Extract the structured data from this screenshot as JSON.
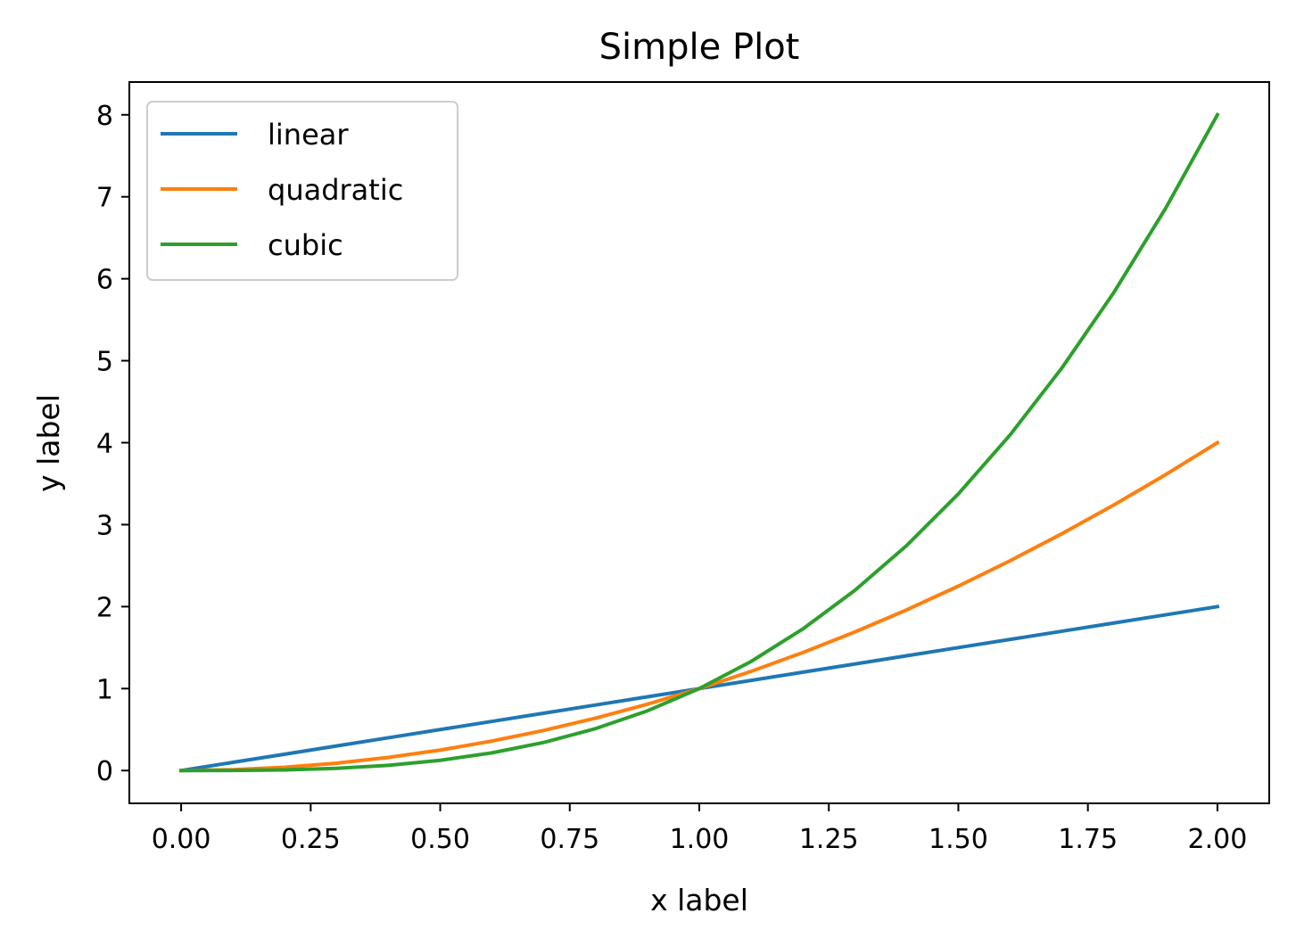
{
  "chart_data": {
    "type": "line",
    "title": "Simple Plot",
    "xlabel": "x label",
    "ylabel": "y label",
    "xlim": [
      -0.1,
      2.1
    ],
    "ylim": [
      -0.4,
      8.4
    ],
    "x_ticks": [
      "0.00",
      "0.25",
      "0.50",
      "0.75",
      "1.00",
      "1.25",
      "1.50",
      "1.75",
      "2.00"
    ],
    "y_ticks": [
      "0",
      "1",
      "2",
      "3",
      "4",
      "5",
      "6",
      "7",
      "8"
    ],
    "grid": false,
    "legend_position": "upper-left",
    "x": [
      0.0,
      0.1,
      0.2,
      0.3,
      0.4,
      0.5,
      0.6,
      0.7,
      0.8,
      0.9,
      1.0,
      1.1,
      1.2,
      1.3,
      1.4,
      1.5,
      1.6,
      1.7,
      1.8,
      1.9,
      2.0
    ],
    "series": [
      {
        "name": "linear",
        "color": "#1f77b4",
        "values": [
          0.0,
          0.1,
          0.2,
          0.3,
          0.4,
          0.5,
          0.6,
          0.7,
          0.8,
          0.9,
          1.0,
          1.1,
          1.2,
          1.3,
          1.4,
          1.5,
          1.6,
          1.7,
          1.8,
          1.9,
          2.0
        ]
      },
      {
        "name": "quadratic",
        "color": "#ff7f0e",
        "values": [
          0.0,
          0.01,
          0.04,
          0.09,
          0.16,
          0.25,
          0.36,
          0.49,
          0.64,
          0.81,
          1.0,
          1.21,
          1.44,
          1.69,
          1.96,
          2.25,
          2.56,
          2.89,
          3.24,
          3.61,
          4.0
        ]
      },
      {
        "name": "cubic",
        "color": "#2ca02c",
        "values": [
          0.0,
          0.001,
          0.008,
          0.027,
          0.064,
          0.125,
          0.216,
          0.343,
          0.512,
          0.729,
          1.0,
          1.331,
          1.728,
          2.197,
          2.744,
          3.375,
          4.096,
          4.913,
          5.832,
          6.859,
          8.0
        ]
      }
    ]
  }
}
